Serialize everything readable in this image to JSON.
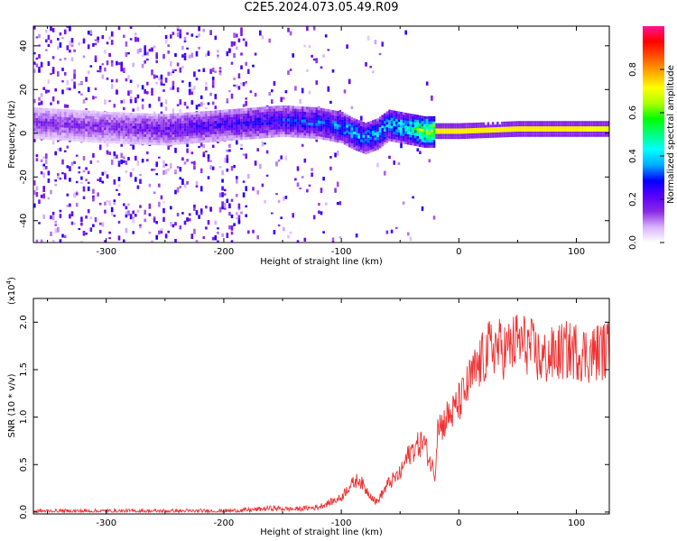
{
  "title": "C2E5.2024.073.05.49.R09",
  "chart_data": [
    {
      "type": "heatmap",
      "xlabel": "Height of straight line (km)",
      "ylabel": "Frequency (Hz)",
      "xlim": [
        -362,
        128
      ],
      "ylim": [
        -50,
        49
      ],
      "xticks": [
        -300,
        -200,
        -100,
        0,
        100
      ],
      "yticks": [
        -40,
        -20,
        0,
        20,
        40
      ],
      "colorbar": {
        "label": "Normalized spectral amplitude",
        "range": [
          0.0,
          1.0
        ],
        "ticks": [
          0.0,
          0.2,
          0.4,
          0.6,
          0.8
        ],
        "colors": [
          "#ffffff",
          "#d9b3ff",
          "#8a2be2",
          "#5a00ff",
          "#0000ff",
          "#00aaff",
          "#00ffff",
          "#00ff80",
          "#00ff00",
          "#aaff00",
          "#ffff00",
          "#ffaa00",
          "#ff5500",
          "#ff0000",
          "#ff1493"
        ]
      },
      "ridge": {
        "x": [
          -360,
          -300,
          -250,
          -200,
          -150,
          -120,
          -100,
          -90,
          -80,
          -70,
          -60,
          -50,
          -40,
          -30,
          -20,
          0,
          50,
          100,
          128
        ],
        "y": [
          5,
          3,
          2,
          4,
          6,
          5,
          3,
          0,
          -2,
          0,
          4,
          3,
          2,
          1,
          1,
          1,
          2,
          2,
          2
        ],
        "amplitude": [
          0.2,
          0.2,
          0.25,
          0.3,
          0.35,
          0.4,
          0.45,
          0.5,
          0.45,
          0.5,
          0.5,
          0.55,
          0.6,
          0.8,
          0.85,
          0.85,
          0.85,
          0.85,
          0.8
        ]
      },
      "grid": false
    },
    {
      "type": "line",
      "xlabel": "Height of straight line (km)",
      "ylabel": "SNR (10 * v/v)",
      "scale_label": "(x10",
      "scale_exponent": "4",
      "xlim": [
        -362,
        128
      ],
      "ylim": [
        -0.02,
        2.25
      ],
      "xticks": [
        -300,
        -200,
        -100,
        0,
        100
      ],
      "yticks": [
        0.0,
        0.5,
        1.0,
        1.5,
        2.0
      ],
      "ytick_labels": [
        "0.0",
        "0.5",
        "1.0",
        "1.5",
        "2.0"
      ],
      "color": "#ee3333",
      "series": [
        {
          "x": [
            -362,
            -300,
            -250,
            -200,
            -180,
            -160,
            -140,
            -120,
            -110,
            -100,
            -95,
            -90,
            -85,
            -80,
            -75,
            -70,
            -65,
            -60,
            -55,
            -50,
            -45,
            -40,
            -35,
            -30,
            -25,
            -20,
            -18,
            -15,
            -10,
            -5,
            0,
            5,
            10,
            15,
            20,
            25,
            30,
            40,
            50,
            60,
            70,
            80,
            90,
            100,
            110,
            120,
            128
          ],
          "y": [
            0.01,
            0.01,
            0.01,
            0.01,
            0.02,
            0.04,
            0.03,
            0.05,
            0.1,
            0.15,
            0.25,
            0.3,
            0.35,
            0.25,
            0.18,
            0.1,
            0.2,
            0.3,
            0.35,
            0.4,
            0.55,
            0.65,
            0.7,
            0.75,
            0.55,
            0.4,
            1.0,
            0.9,
            1.0,
            1.05,
            1.15,
            1.25,
            1.4,
            1.5,
            1.6,
            1.7,
            1.75,
            1.7,
            1.8,
            1.75,
            1.6,
            1.65,
            1.7,
            1.7,
            1.65,
            1.7,
            1.7
          ]
        }
      ],
      "grid": false
    }
  ]
}
